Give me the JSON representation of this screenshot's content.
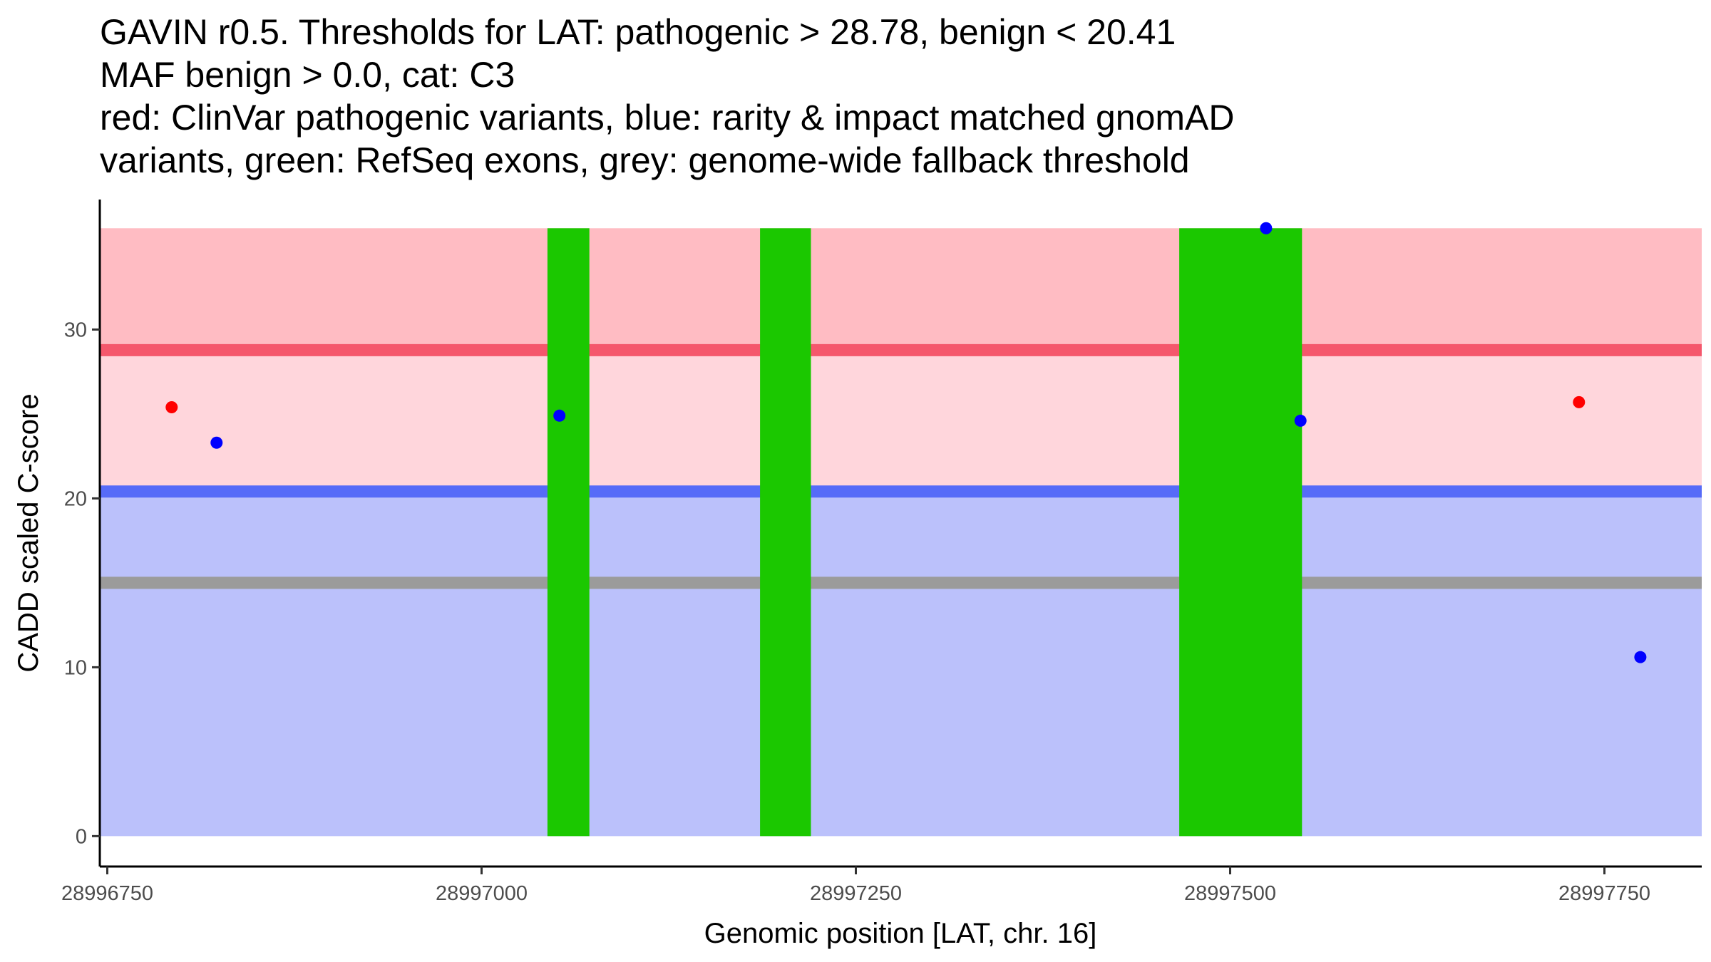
{
  "chart_data": {
    "type": "scatter",
    "title_lines": [
      "GAVIN r0.5. Thresholds for LAT: pathogenic > 28.78, benign < 20.41",
      "MAF benign > 0.0, cat: C3",
      "red: ClinVar pathogenic variants, blue: rarity & impact matched gnomAD",
      "variants, green: RefSeq exons, grey: genome-wide fallback threshold"
    ],
    "xlabel": "Genomic position [LAT, chr. 16]",
    "ylabel": "CADD scaled C-score",
    "xlim": [
      28996745,
      28997815
    ],
    "ylim": [
      -1.8,
      37.7
    ],
    "x_ticks": [
      28996750,
      28997000,
      28997250,
      28997500,
      28997750
    ],
    "x_tick_labels": [
      "28996750",
      "28997000",
      "28997250",
      "28997500",
      "28997750"
    ],
    "y_ticks": [
      0,
      10,
      20,
      30
    ],
    "y_tick_labels": [
      "0",
      "10",
      "20",
      "30"
    ],
    "plot_x_range": [
      28996745,
      28997815
    ],
    "bands": [
      {
        "name": "benign-region",
        "y0": 0,
        "y1": 20.41,
        "color": "#bbc1fb"
      },
      {
        "name": "intermediate-region",
        "y0": 20.41,
        "y1": 28.78,
        "color": "#ffd6dc"
      },
      {
        "name": "pathogenic-region",
        "y0": 28.78,
        "y1": 36,
        "color": "#ffbcc3"
      }
    ],
    "threshold_lines": [
      {
        "name": "pathogenic-threshold",
        "y": 28.78,
        "color": "#f5576c"
      },
      {
        "name": "benign-threshold",
        "y": 20.41,
        "color": "#566bf8"
      },
      {
        "name": "fallback-threshold",
        "y": 15,
        "color": "#9b9b9b"
      }
    ],
    "exons": [
      {
        "x0": 28997044,
        "x1": 28997072,
        "y0": 0,
        "y1": 36,
        "color": "#1bc800"
      },
      {
        "x0": 28997186,
        "x1": 28997220,
        "y0": 0,
        "y1": 36,
        "color": "#1bc800"
      },
      {
        "x0": 28997466,
        "x1": 28997548,
        "y0": 0,
        "y1": 36,
        "color": "#1bc800"
      }
    ],
    "series": [
      {
        "name": "ClinVar pathogenic variants",
        "color": "#ff0000",
        "points": [
          {
            "x": 28996793,
            "y": 25.4
          },
          {
            "x": 28997733,
            "y": 25.7
          }
        ]
      },
      {
        "name": "gnomAD matched variants",
        "color": "#0000ff",
        "points": [
          {
            "x": 28996823,
            "y": 23.3
          },
          {
            "x": 28997052,
            "y": 24.9
          },
          {
            "x": 28997524,
            "y": 36.0
          },
          {
            "x": 28997547,
            "y": 24.6
          },
          {
            "x": 28997774,
            "y": 10.6
          }
        ]
      }
    ]
  }
}
